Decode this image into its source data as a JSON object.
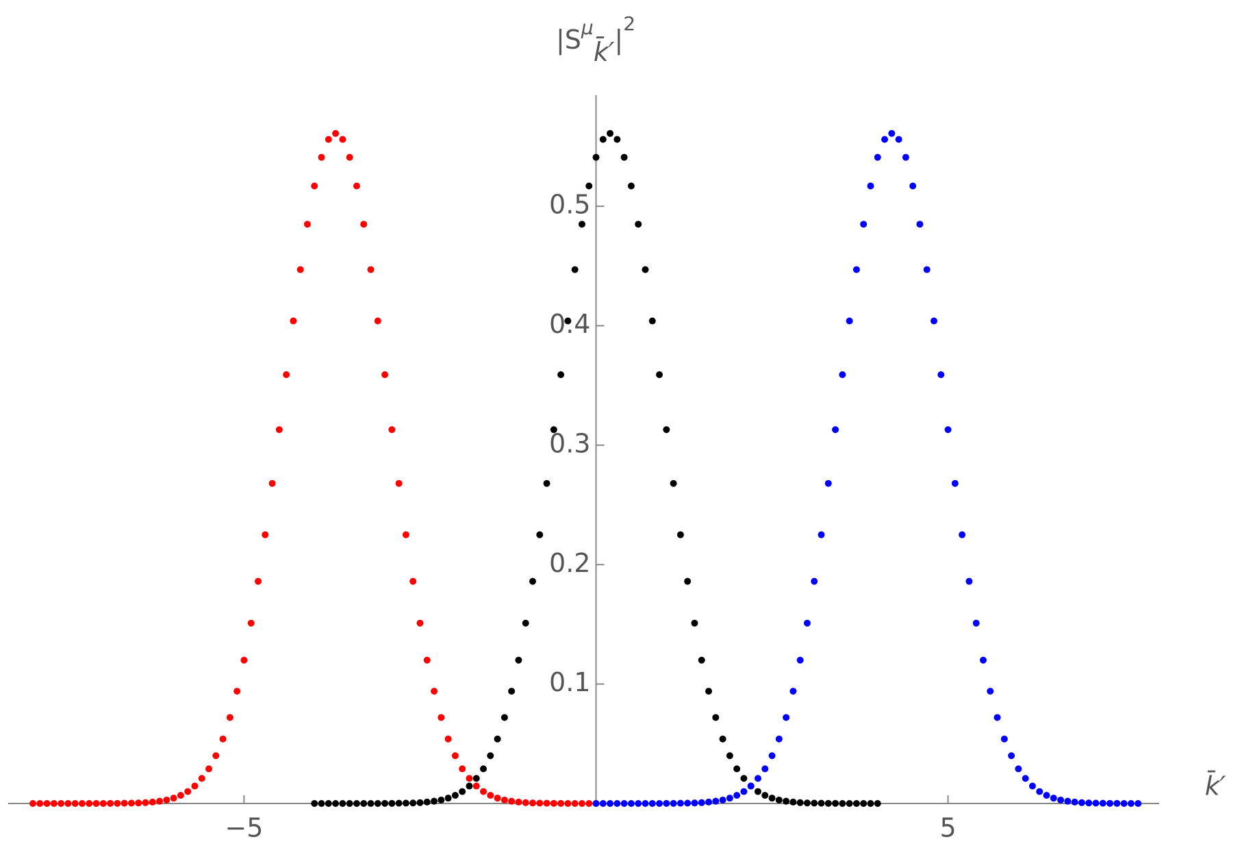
{
  "chart_data": {
    "type": "scatter",
    "xlabel": "k̄′",
    "ylabel_parts": [
      "|S",
      "μ",
      "k̄′",
      "|",
      "2"
    ],
    "xlim": [
      -8.35,
      8.0
    ],
    "ylim": [
      0,
      0.593
    ],
    "xticks": [
      {
        "value": -5,
        "label": "−5"
      },
      5
    ],
    "yticks": [
      0.1,
      0.2,
      0.3,
      0.4,
      0.5
    ],
    "series": [
      {
        "color": "#ff0000",
        "x": [
          -8.0,
          -7.9,
          -7.8,
          -7.7,
          -7.6,
          -7.5,
          -7.4,
          -7.3,
          -7.2,
          -7.1,
          -7.0,
          -6.9,
          -6.8,
          -6.7,
          -6.6,
          -6.5,
          -6.4,
          -6.3,
          -6.2,
          -6.1,
          -6.0,
          -5.9,
          -5.8,
          -5.7,
          -5.6,
          -5.5,
          -5.4,
          -5.3,
          -5.2,
          -5.1,
          -5.0,
          -4.9,
          -4.8,
          -4.7,
          -4.6,
          -4.5,
          -4.4,
          -4.3,
          -4.2,
          -4.1,
          -4.0,
          -3.9,
          -3.8,
          -3.7,
          -3.6,
          -3.5,
          -3.4,
          -3.3,
          -3.2,
          -3.1,
          -3.0,
          -2.9,
          -2.8,
          -2.7,
          -2.6,
          -2.5,
          -2.4,
          -2.3,
          -2.2,
          -2.1,
          -2.0,
          -1.9,
          -1.8,
          -1.7,
          -1.6,
          -1.5,
          -1.4,
          -1.3,
          -1.2,
          -1.1,
          -1.0,
          -0.9,
          -0.8,
          -0.7,
          -0.6,
          -0.5,
          -0.4,
          -0.3,
          -0.2,
          -0.1,
          0.0
        ],
        "values": [
          0,
          0,
          0,
          0,
          0,
          0,
          0,
          0,
          0,
          0,
          0,
          0.0001,
          0.0001,
          0.0002,
          0.0003,
          0.0004,
          0.0007,
          0.0012,
          0.0019,
          0.0029,
          0.0045,
          0.0068,
          0.01,
          0.0146,
          0.021,
          0.029,
          0.04,
          0.054,
          0.072,
          0.094,
          0.12,
          0.151,
          0.186,
          0.225,
          0.268,
          0.313,
          0.359,
          0.404,
          0.447,
          0.485,
          0.517,
          0.541,
          0.556,
          0.561,
          0.556,
          0.541,
          0.517,
          0.485,
          0.447,
          0.404,
          0.359,
          0.313,
          0.268,
          0.225,
          0.186,
          0.151,
          0.12,
          0.094,
          0.072,
          0.054,
          0.04,
          0.029,
          0.021,
          0.0146,
          0.01,
          0.0068,
          0.0045,
          0.0029,
          0.0019,
          0.0012,
          0.0007,
          0.0004,
          0.0003,
          0.0002,
          0.0001,
          0.0001,
          0,
          0,
          0,
          0,
          0
        ]
      },
      {
        "color": "#000000",
        "x": [
          -4.0,
          -3.9,
          -3.8,
          -3.7,
          -3.6,
          -3.5,
          -3.4,
          -3.3,
          -3.2,
          -3.1,
          -3.0,
          -2.9,
          -2.8,
          -2.7,
          -2.6,
          -2.5,
          -2.4,
          -2.3,
          -2.2,
          -2.1,
          -2.0,
          -1.9,
          -1.8,
          -1.7,
          -1.6,
          -1.5,
          -1.4,
          -1.3,
          -1.2,
          -1.1,
          -1.0,
          -0.9,
          -0.8,
          -0.7,
          -0.6,
          -0.5,
          -0.4,
          -0.3,
          -0.2,
          -0.1,
          0.0,
          0.1,
          0.2,
          0.3,
          0.4,
          0.5,
          0.6,
          0.7,
          0.8,
          0.9,
          1.0,
          1.1,
          1.2,
          1.3,
          1.4,
          1.5,
          1.6,
          1.7,
          1.8,
          1.9,
          2.0,
          2.1,
          2.2,
          2.3,
          2.4,
          2.5,
          2.6,
          2.7,
          2.8,
          2.9,
          3.0,
          3.1,
          3.2,
          3.3,
          3.4,
          3.5,
          3.6,
          3.7,
          3.8,
          3.9,
          4.0
        ],
        "values": [
          0,
          0,
          0,
          0,
          0,
          0,
          0,
          0,
          0,
          0,
          0.0001,
          0.0001,
          0.0002,
          0.0003,
          0.0004,
          0.0007,
          0.0012,
          0.0019,
          0.0029,
          0.0045,
          0.0068,
          0.01,
          0.0146,
          0.021,
          0.029,
          0.04,
          0.054,
          0.072,
          0.094,
          0.12,
          0.151,
          0.186,
          0.225,
          0.268,
          0.313,
          0.359,
          0.404,
          0.447,
          0.485,
          0.517,
          0.541,
          0.556,
          0.561,
          0.556,
          0.541,
          0.517,
          0.485,
          0.447,
          0.404,
          0.359,
          0.313,
          0.268,
          0.225,
          0.186,
          0.151,
          0.12,
          0.094,
          0.072,
          0.054,
          0.04,
          0.029,
          0.021,
          0.0146,
          0.01,
          0.0068,
          0.0045,
          0.0029,
          0.0019,
          0.0012,
          0.0007,
          0.0004,
          0.0003,
          0.0002,
          0.0001,
          0.0001,
          0,
          0,
          0,
          0,
          0,
          0
        ]
      },
      {
        "color": "#0000ff",
        "x": [
          0.0,
          0.1,
          0.2,
          0.3,
          0.4,
          0.5,
          0.6,
          0.7,
          0.8,
          0.9,
          1.0,
          1.1,
          1.2,
          1.3,
          1.4,
          1.5,
          1.6,
          1.7,
          1.8,
          1.9,
          2.0,
          2.1,
          2.2,
          2.3,
          2.4,
          2.5,
          2.6,
          2.7,
          2.8,
          2.9,
          3.0,
          3.1,
          3.2,
          3.3,
          3.4,
          3.5,
          3.6,
          3.7,
          3.8,
          3.9,
          4.0,
          4.1,
          4.2,
          4.3,
          4.4,
          4.5,
          4.6,
          4.7,
          4.8,
          4.9,
          5.0,
          5.1,
          5.2,
          5.3,
          5.4,
          5.5,
          5.6,
          5.7,
          5.8,
          5.9,
          6.0,
          6.1,
          6.2,
          6.3,
          6.4,
          6.5,
          6.6,
          6.7,
          6.8,
          6.9,
          7.0,
          7.1,
          7.2,
          7.3,
          7.4,
          7.5,
          7.6,
          7.7
        ],
        "values": [
          0,
          0,
          0,
          0,
          0,
          0,
          0,
          0,
          0,
          0,
          0.0001,
          0.0001,
          0.0002,
          0.0003,
          0.0004,
          0.0007,
          0.0012,
          0.0019,
          0.0029,
          0.0045,
          0.0068,
          0.01,
          0.0146,
          0.021,
          0.029,
          0.04,
          0.054,
          0.072,
          0.094,
          0.12,
          0.151,
          0.186,
          0.225,
          0.268,
          0.313,
          0.359,
          0.404,
          0.447,
          0.485,
          0.517,
          0.541,
          0.556,
          0.561,
          0.556,
          0.541,
          0.517,
          0.485,
          0.447,
          0.404,
          0.359,
          0.313,
          0.268,
          0.225,
          0.186,
          0.151,
          0.12,
          0.094,
          0.072,
          0.054,
          0.04,
          0.029,
          0.021,
          0.0146,
          0.01,
          0.0068,
          0.0045,
          0.0029,
          0.0019,
          0.0012,
          0.0007,
          0.0004,
          0.0003,
          0.0002,
          0.0001,
          0.0001,
          0,
          0,
          0
        ]
      }
    ]
  }
}
